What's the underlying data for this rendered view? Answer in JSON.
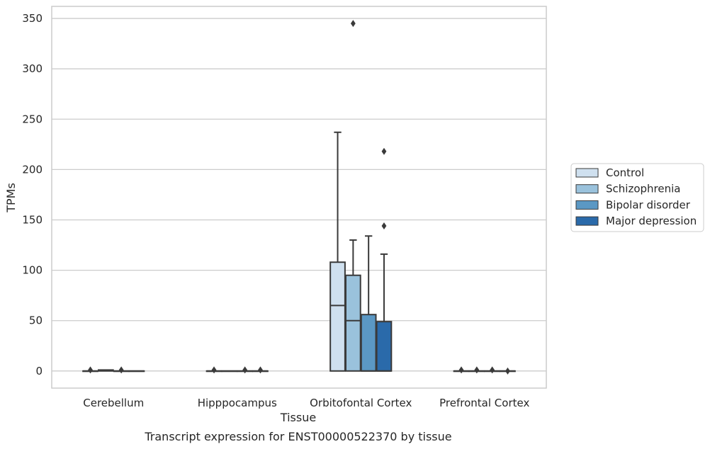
{
  "chart_data": {
    "type": "box",
    "title": "Transcript expression for ENST00000522370 by tissue",
    "xlabel": "Tissue",
    "ylabel": "TPMs",
    "categories": [
      "Cerebellum",
      "Hipppocampus",
      "Orbitofontal Cortex",
      "Prefrontal Cortex"
    ],
    "ylim": [
      -17,
      362
    ],
    "yticks": [
      0,
      50,
      100,
      150,
      200,
      250,
      300,
      350
    ],
    "grid": "horizontal",
    "legend_position": "right",
    "series": [
      {
        "name": "Control",
        "color": "#cfe0ef",
        "boxes": [
          {
            "q1": 0,
            "median": 0,
            "q3": 0,
            "whisker_low": 0,
            "whisker_high": 0,
            "outliers": [
              1
            ]
          },
          {
            "q1": 0,
            "median": 0,
            "q3": 0,
            "whisker_low": 0,
            "whisker_high": 0,
            "outliers": [
              1
            ]
          },
          {
            "q1": 0,
            "median": 65,
            "q3": 108,
            "whisker_low": 0,
            "whisker_high": 237,
            "outliers": []
          },
          {
            "q1": 0,
            "median": 0,
            "q3": 0,
            "whisker_low": 0,
            "whisker_high": 0,
            "outliers": [
              1
            ]
          }
        ]
      },
      {
        "name": "Schizophrenia",
        "color": "#9ac2dc",
        "boxes": [
          {
            "q1": 0,
            "median": 0.5,
            "q3": 1,
            "whisker_low": 0,
            "whisker_high": 1,
            "outliers": []
          },
          {
            "q1": 0,
            "median": 0,
            "q3": 0,
            "whisker_low": 0,
            "whisker_high": 0,
            "outliers": []
          },
          {
            "q1": 0,
            "median": 50,
            "q3": 95,
            "whisker_low": 0,
            "whisker_high": 130,
            "outliers": [
              345
            ]
          },
          {
            "q1": 0,
            "median": 0,
            "q3": 0,
            "whisker_low": 0,
            "whisker_high": 0,
            "outliers": [
              1
            ]
          }
        ]
      },
      {
        "name": "Bipolar disorder",
        "color": "#5b98c4",
        "boxes": [
          {
            "q1": 0,
            "median": 0,
            "q3": 0,
            "whisker_low": 0,
            "whisker_high": 0,
            "outliers": [
              1
            ]
          },
          {
            "q1": 0,
            "median": 0,
            "q3": 0,
            "whisker_low": 0,
            "whisker_high": 0,
            "outliers": [
              1
            ]
          },
          {
            "q1": 0,
            "median": 0,
            "q3": 56,
            "whisker_low": 0,
            "whisker_high": 134,
            "outliers": []
          },
          {
            "q1": 0,
            "median": 0,
            "q3": 0,
            "whisker_low": 0,
            "whisker_high": 0,
            "outliers": [
              1
            ]
          }
        ]
      },
      {
        "name": "Major depression",
        "color": "#2a6aaa",
        "boxes": [
          {
            "q1": 0,
            "median": 0,
            "q3": 0,
            "whisker_low": 0,
            "whisker_high": 0,
            "outliers": []
          },
          {
            "q1": 0,
            "median": 0,
            "q3": 0,
            "whisker_low": 0,
            "whisker_high": 0,
            "outliers": [
              1
            ]
          },
          {
            "q1": 0,
            "median": 0,
            "q3": 49,
            "whisker_low": 0,
            "whisker_high": 116,
            "outliers": [
              218,
              144
            ]
          },
          {
            "q1": 0,
            "median": 0,
            "q3": 0,
            "whisker_low": 0,
            "whisker_high": 0,
            "outliers": [
              0
            ]
          }
        ]
      }
    ]
  }
}
